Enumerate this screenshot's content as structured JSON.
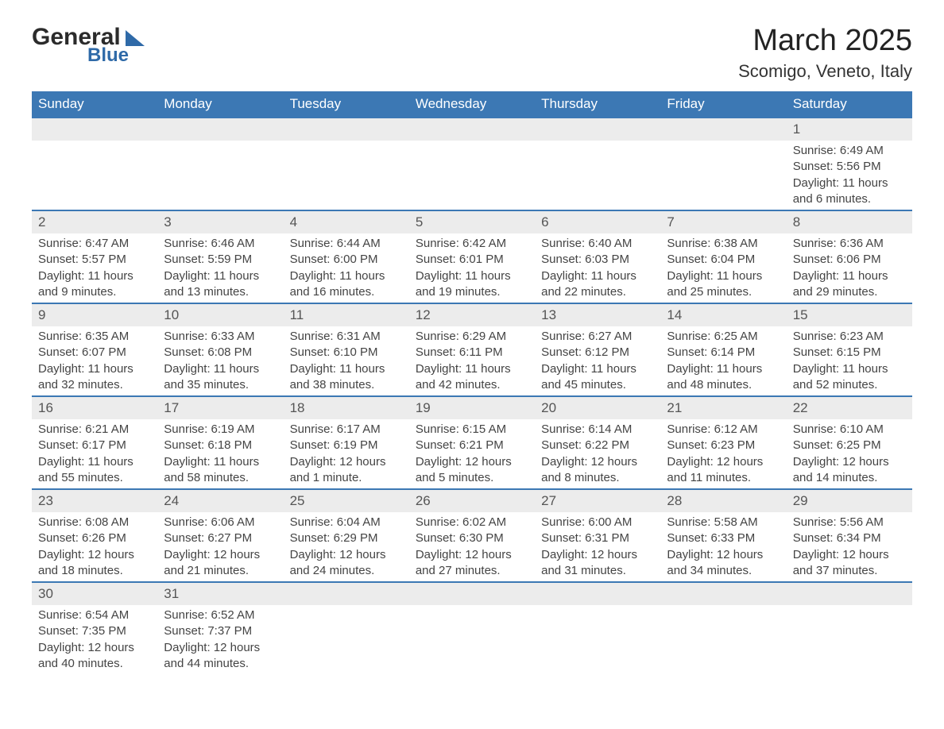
{
  "brand": {
    "text1": "General",
    "text2": "Blue",
    "logo_color": "#2f6aa8"
  },
  "title": "March 2025",
  "location": "Scomigo, Veneto, Italy",
  "colors": {
    "header_bg": "#3c78b4",
    "header_fg": "#ffffff",
    "daynum_bg": "#ececec",
    "row_border": "#3c78b4",
    "text": "#444444"
  },
  "day_labels": [
    "Sunday",
    "Monday",
    "Tuesday",
    "Wednesday",
    "Thursday",
    "Friday",
    "Saturday"
  ],
  "weeks": [
    [
      null,
      null,
      null,
      null,
      null,
      null,
      {
        "n": "1",
        "sr": "Sunrise: 6:49 AM",
        "ss": "Sunset: 5:56 PM",
        "d1": "Daylight: 11 hours",
        "d2": "and 6 minutes."
      }
    ],
    [
      {
        "n": "2",
        "sr": "Sunrise: 6:47 AM",
        "ss": "Sunset: 5:57 PM",
        "d1": "Daylight: 11 hours",
        "d2": "and 9 minutes."
      },
      {
        "n": "3",
        "sr": "Sunrise: 6:46 AM",
        "ss": "Sunset: 5:59 PM",
        "d1": "Daylight: 11 hours",
        "d2": "and 13 minutes."
      },
      {
        "n": "4",
        "sr": "Sunrise: 6:44 AM",
        "ss": "Sunset: 6:00 PM",
        "d1": "Daylight: 11 hours",
        "d2": "and 16 minutes."
      },
      {
        "n": "5",
        "sr": "Sunrise: 6:42 AM",
        "ss": "Sunset: 6:01 PM",
        "d1": "Daylight: 11 hours",
        "d2": "and 19 minutes."
      },
      {
        "n": "6",
        "sr": "Sunrise: 6:40 AM",
        "ss": "Sunset: 6:03 PM",
        "d1": "Daylight: 11 hours",
        "d2": "and 22 minutes."
      },
      {
        "n": "7",
        "sr": "Sunrise: 6:38 AM",
        "ss": "Sunset: 6:04 PM",
        "d1": "Daylight: 11 hours",
        "d2": "and 25 minutes."
      },
      {
        "n": "8",
        "sr": "Sunrise: 6:36 AM",
        "ss": "Sunset: 6:06 PM",
        "d1": "Daylight: 11 hours",
        "d2": "and 29 minutes."
      }
    ],
    [
      {
        "n": "9",
        "sr": "Sunrise: 6:35 AM",
        "ss": "Sunset: 6:07 PM",
        "d1": "Daylight: 11 hours",
        "d2": "and 32 minutes."
      },
      {
        "n": "10",
        "sr": "Sunrise: 6:33 AM",
        "ss": "Sunset: 6:08 PM",
        "d1": "Daylight: 11 hours",
        "d2": "and 35 minutes."
      },
      {
        "n": "11",
        "sr": "Sunrise: 6:31 AM",
        "ss": "Sunset: 6:10 PM",
        "d1": "Daylight: 11 hours",
        "d2": "and 38 minutes."
      },
      {
        "n": "12",
        "sr": "Sunrise: 6:29 AM",
        "ss": "Sunset: 6:11 PM",
        "d1": "Daylight: 11 hours",
        "d2": "and 42 minutes."
      },
      {
        "n": "13",
        "sr": "Sunrise: 6:27 AM",
        "ss": "Sunset: 6:12 PM",
        "d1": "Daylight: 11 hours",
        "d2": "and 45 minutes."
      },
      {
        "n": "14",
        "sr": "Sunrise: 6:25 AM",
        "ss": "Sunset: 6:14 PM",
        "d1": "Daylight: 11 hours",
        "d2": "and 48 minutes."
      },
      {
        "n": "15",
        "sr": "Sunrise: 6:23 AM",
        "ss": "Sunset: 6:15 PM",
        "d1": "Daylight: 11 hours",
        "d2": "and 52 minutes."
      }
    ],
    [
      {
        "n": "16",
        "sr": "Sunrise: 6:21 AM",
        "ss": "Sunset: 6:17 PM",
        "d1": "Daylight: 11 hours",
        "d2": "and 55 minutes."
      },
      {
        "n": "17",
        "sr": "Sunrise: 6:19 AM",
        "ss": "Sunset: 6:18 PM",
        "d1": "Daylight: 11 hours",
        "d2": "and 58 minutes."
      },
      {
        "n": "18",
        "sr": "Sunrise: 6:17 AM",
        "ss": "Sunset: 6:19 PM",
        "d1": "Daylight: 12 hours",
        "d2": "and 1 minute."
      },
      {
        "n": "19",
        "sr": "Sunrise: 6:15 AM",
        "ss": "Sunset: 6:21 PM",
        "d1": "Daylight: 12 hours",
        "d2": "and 5 minutes."
      },
      {
        "n": "20",
        "sr": "Sunrise: 6:14 AM",
        "ss": "Sunset: 6:22 PM",
        "d1": "Daylight: 12 hours",
        "d2": "and 8 minutes."
      },
      {
        "n": "21",
        "sr": "Sunrise: 6:12 AM",
        "ss": "Sunset: 6:23 PM",
        "d1": "Daylight: 12 hours",
        "d2": "and 11 minutes."
      },
      {
        "n": "22",
        "sr": "Sunrise: 6:10 AM",
        "ss": "Sunset: 6:25 PM",
        "d1": "Daylight: 12 hours",
        "d2": "and 14 minutes."
      }
    ],
    [
      {
        "n": "23",
        "sr": "Sunrise: 6:08 AM",
        "ss": "Sunset: 6:26 PM",
        "d1": "Daylight: 12 hours",
        "d2": "and 18 minutes."
      },
      {
        "n": "24",
        "sr": "Sunrise: 6:06 AM",
        "ss": "Sunset: 6:27 PM",
        "d1": "Daylight: 12 hours",
        "d2": "and 21 minutes."
      },
      {
        "n": "25",
        "sr": "Sunrise: 6:04 AM",
        "ss": "Sunset: 6:29 PM",
        "d1": "Daylight: 12 hours",
        "d2": "and 24 minutes."
      },
      {
        "n": "26",
        "sr": "Sunrise: 6:02 AM",
        "ss": "Sunset: 6:30 PM",
        "d1": "Daylight: 12 hours",
        "d2": "and 27 minutes."
      },
      {
        "n": "27",
        "sr": "Sunrise: 6:00 AM",
        "ss": "Sunset: 6:31 PM",
        "d1": "Daylight: 12 hours",
        "d2": "and 31 minutes."
      },
      {
        "n": "28",
        "sr": "Sunrise: 5:58 AM",
        "ss": "Sunset: 6:33 PM",
        "d1": "Daylight: 12 hours",
        "d2": "and 34 minutes."
      },
      {
        "n": "29",
        "sr": "Sunrise: 5:56 AM",
        "ss": "Sunset: 6:34 PM",
        "d1": "Daylight: 12 hours",
        "d2": "and 37 minutes."
      }
    ],
    [
      {
        "n": "30",
        "sr": "Sunrise: 6:54 AM",
        "ss": "Sunset: 7:35 PM",
        "d1": "Daylight: 12 hours",
        "d2": "and 40 minutes."
      },
      {
        "n": "31",
        "sr": "Sunrise: 6:52 AM",
        "ss": "Sunset: 7:37 PM",
        "d1": "Daylight: 12 hours",
        "d2": "and 44 minutes."
      },
      null,
      null,
      null,
      null,
      null
    ]
  ]
}
